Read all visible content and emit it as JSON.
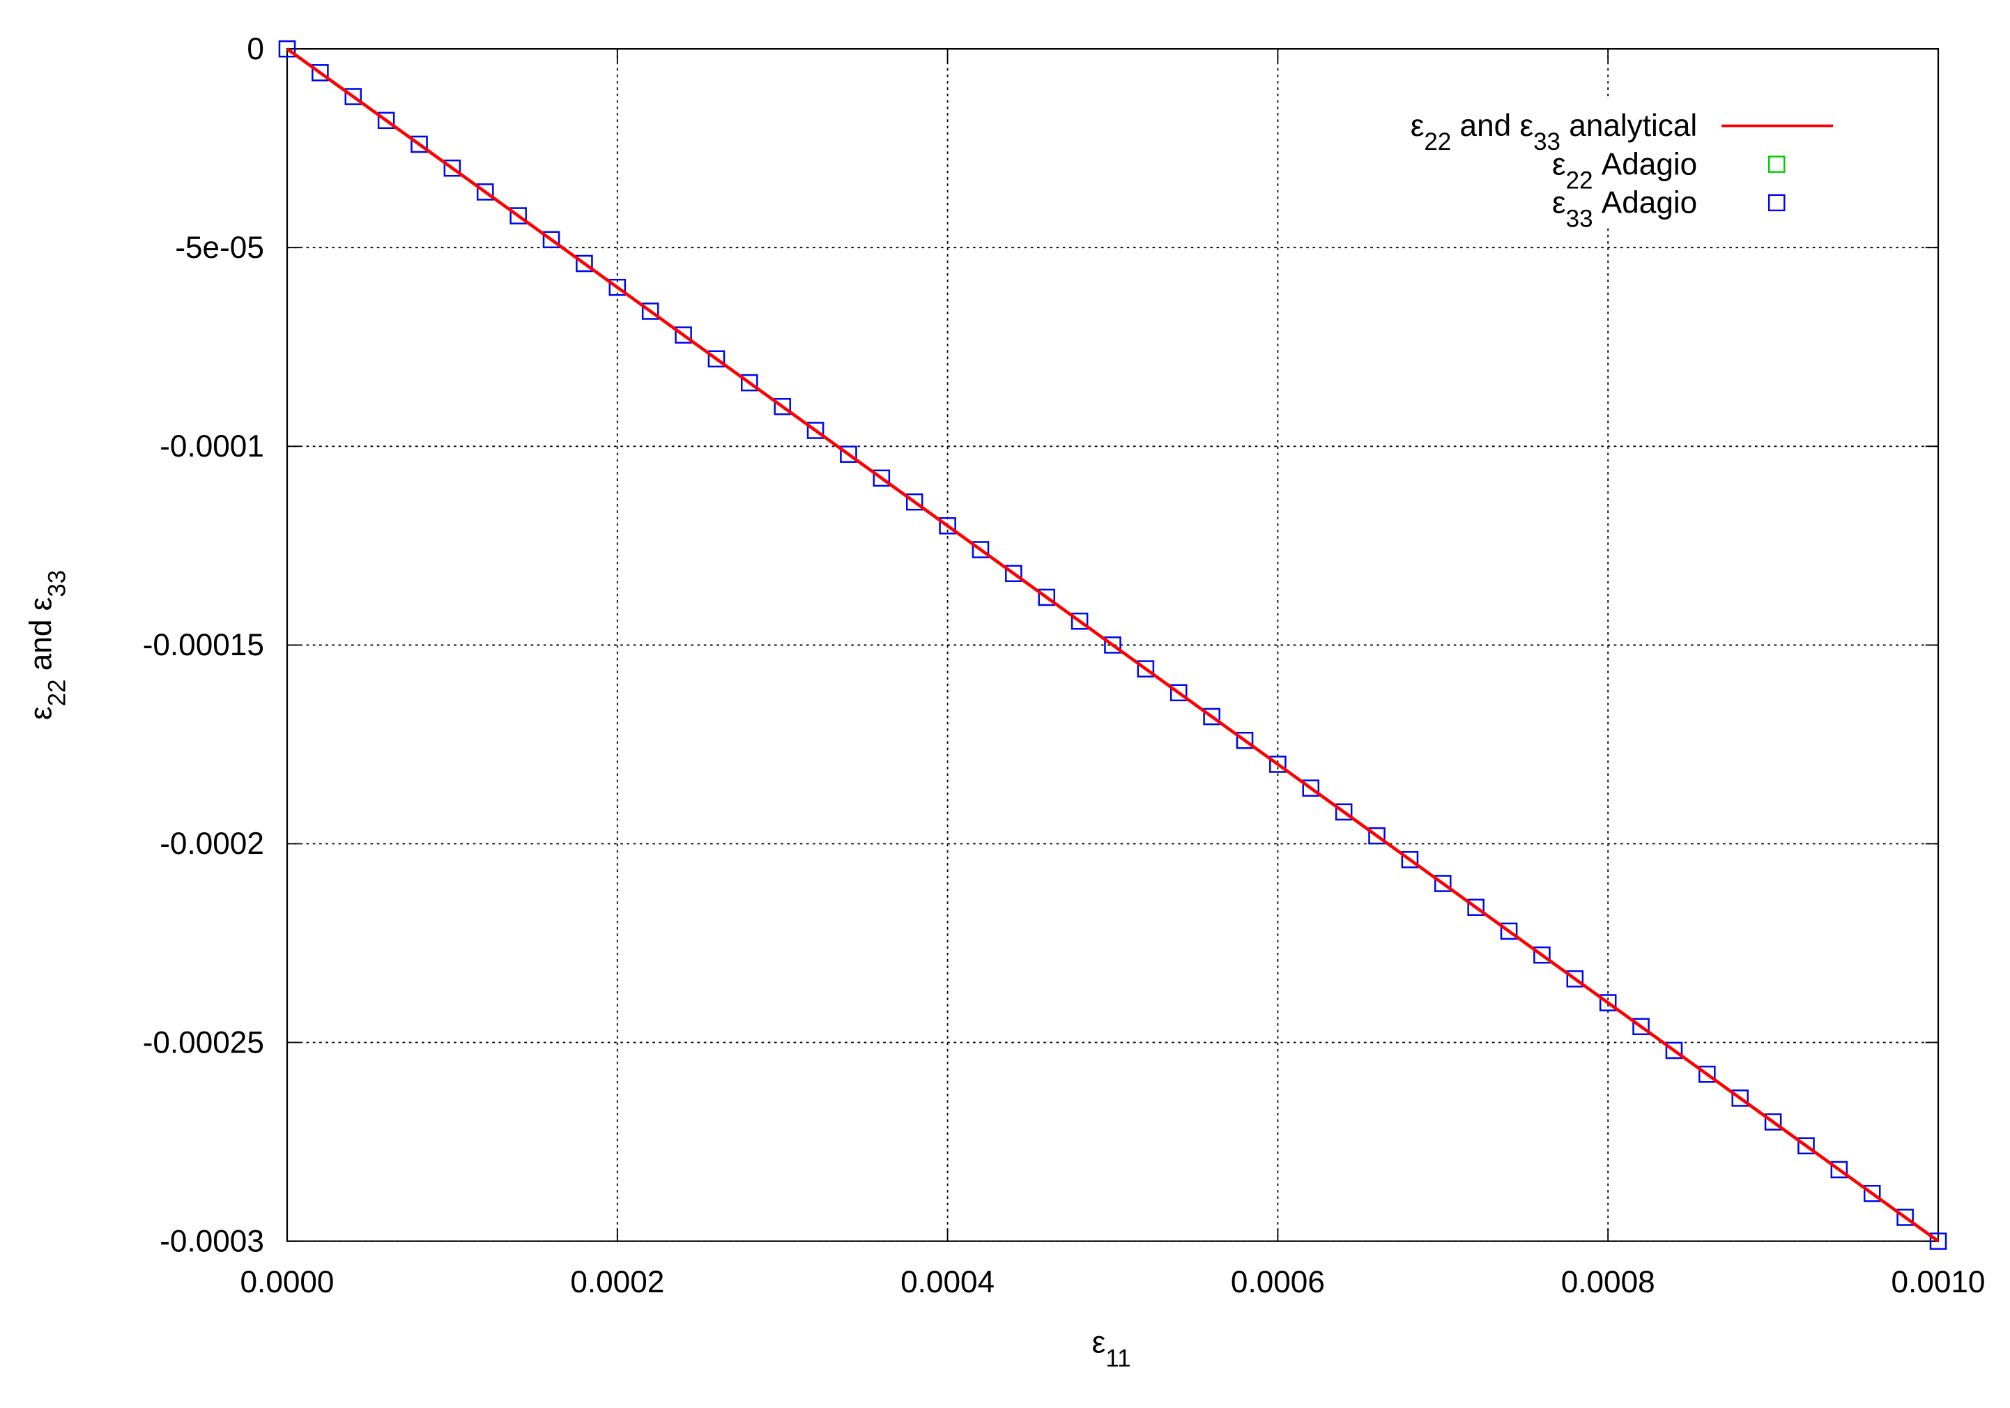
{
  "chart_data": {
    "type": "line",
    "x_label": "ε11",
    "y_label": "ε22 and ε33",
    "xlim": [
      0,
      0.001
    ],
    "ylim": [
      -0.0003,
      0
    ],
    "xticks": [
      {
        "value": 0,
        "label": "0.0000"
      },
      {
        "value": 0.0002,
        "label": "0.0002"
      },
      {
        "value": 0.0004,
        "label": "0.0004"
      },
      {
        "value": 0.0006,
        "label": "0.0006"
      },
      {
        "value": 0.0008,
        "label": "0.0008"
      },
      {
        "value": 0.001,
        "label": "0.0010"
      }
    ],
    "yticks": [
      0,
      {
        "value": -5e-05,
        "label": "-5e-05"
      },
      -0.0001,
      -0.00015,
      -0.0002,
      -0.00025,
      -0.0003
    ],
    "grid": true,
    "legend": "top-right",
    "series": [
      {
        "name": "ε22 and ε33 analytical",
        "color": "#ff0000",
        "style": "line",
        "x": [
          0,
          0.001
        ],
        "values": [
          0,
          -0.0003
        ]
      },
      {
        "name": "ε22 Adagio",
        "color": "#00cc00",
        "style": "points",
        "x": [
          0,
          2e-05,
          4e-05,
          6e-05,
          8e-05,
          0.0001,
          0.00012,
          0.00014,
          0.00016,
          0.00018,
          0.0002,
          0.00022,
          0.00024,
          0.00026,
          0.00028,
          0.0003,
          0.00032,
          0.00034,
          0.00036,
          0.00038,
          0.0004,
          0.00042,
          0.00044,
          0.00046,
          0.00048,
          0.0005,
          0.00052,
          0.00054,
          0.00056,
          0.00058,
          0.0006,
          0.00062,
          0.00064,
          0.00066,
          0.00068,
          0.0007,
          0.00072,
          0.00074,
          0.00076,
          0.00078,
          0.0008,
          0.00082,
          0.00084,
          0.00086,
          0.00088,
          0.0009,
          0.00092,
          0.00094,
          0.00096,
          0.00098,
          0.001
        ],
        "values": [
          0,
          -6e-06,
          -1.2e-05,
          -1.8e-05,
          -2.4e-05,
          -3e-05,
          -3.6e-05,
          -4.2e-05,
          -4.8e-05,
          -5.4e-05,
          -6e-05,
          -6.6e-05,
          -7.2e-05,
          -7.8e-05,
          -8.4e-05,
          -9e-05,
          -9.6e-05,
          -0.000102,
          -0.000108,
          -0.000114,
          -0.00012,
          -0.000126,
          -0.000132,
          -0.000138,
          -0.000144,
          -0.00015,
          -0.000156,
          -0.000162,
          -0.000168,
          -0.000174,
          -0.00018,
          -0.000186,
          -0.000192,
          -0.000198,
          -0.000204,
          -0.00021,
          -0.000216,
          -0.000222,
          -0.000228,
          -0.000234,
          -0.00024,
          -0.000246,
          -0.000252,
          -0.000258,
          -0.000264,
          -0.00027,
          -0.000276,
          -0.000282,
          -0.000288,
          -0.000294,
          -0.0003
        ]
      },
      {
        "name": "ε33 Adagio",
        "color": "#0000ff",
        "style": "points",
        "x": [
          0,
          2e-05,
          4e-05,
          6e-05,
          8e-05,
          0.0001,
          0.00012,
          0.00014,
          0.00016,
          0.00018,
          0.0002,
          0.00022,
          0.00024,
          0.00026,
          0.00028,
          0.0003,
          0.00032,
          0.00034,
          0.00036,
          0.00038,
          0.0004,
          0.00042,
          0.00044,
          0.00046,
          0.00048,
          0.0005,
          0.00052,
          0.00054,
          0.00056,
          0.00058,
          0.0006,
          0.00062,
          0.00064,
          0.00066,
          0.00068,
          0.0007,
          0.00072,
          0.00074,
          0.00076,
          0.00078,
          0.0008,
          0.00082,
          0.00084,
          0.00086,
          0.00088,
          0.0009,
          0.00092,
          0.00094,
          0.00096,
          0.00098,
          0.001
        ],
        "values": [
          0,
          -6e-06,
          -1.2e-05,
          -1.8e-05,
          -2.4e-05,
          -3e-05,
          -3.6e-05,
          -4.2e-05,
          -4.8e-05,
          -5.4e-05,
          -6e-05,
          -6.6e-05,
          -7.2e-05,
          -7.8e-05,
          -8.4e-05,
          -9e-05,
          -9.6e-05,
          -0.000102,
          -0.000108,
          -0.000114,
          -0.00012,
          -0.000126,
          -0.000132,
          -0.000138,
          -0.000144,
          -0.00015,
          -0.000156,
          -0.000162,
          -0.000168,
          -0.000174,
          -0.00018,
          -0.000186,
          -0.000192,
          -0.000198,
          -0.000204,
          -0.00021,
          -0.000216,
          -0.000222,
          -0.000228,
          -0.000234,
          -0.00024,
          -0.000246,
          -0.000252,
          -0.000258,
          -0.000264,
          -0.00027,
          -0.000276,
          -0.000282,
          -0.000288,
          -0.000294,
          -0.0003
        ]
      }
    ]
  }
}
